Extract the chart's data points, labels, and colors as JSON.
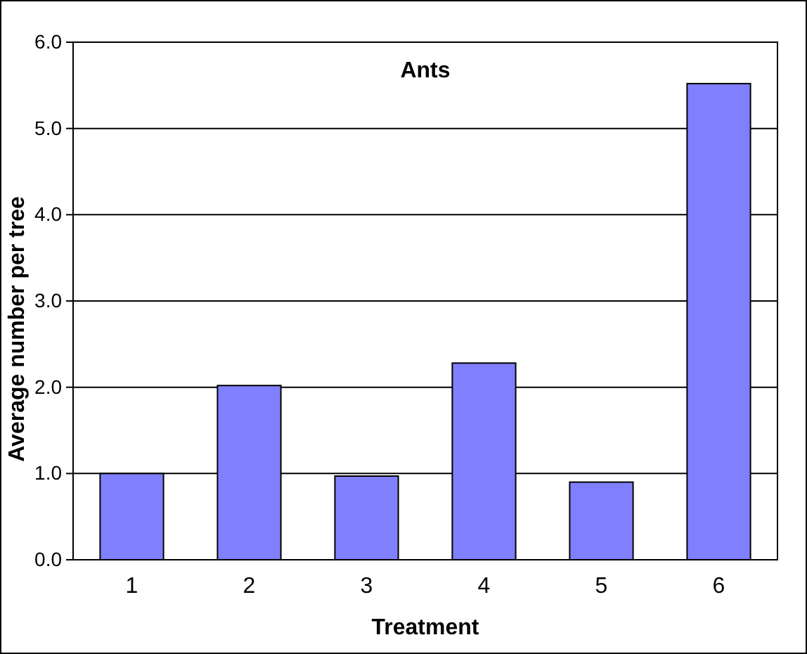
{
  "chart_data": {
    "type": "bar",
    "title": "Ants",
    "xlabel": "Treatment",
    "ylabel": "Average number per tree",
    "categories": [
      "1",
      "2",
      "3",
      "4",
      "5",
      "6"
    ],
    "values": [
      1.0,
      2.02,
      0.97,
      2.28,
      0.9,
      5.52
    ],
    "color": "#8080ff",
    "ylim": [
      0,
      6
    ],
    "yticks": [
      {
        "value": 0,
        "label": "0.0"
      },
      {
        "value": 1,
        "label": "1.0"
      },
      {
        "value": 2,
        "label": "2.0"
      },
      {
        "value": 3,
        "label": "3.0"
      },
      {
        "value": 4,
        "label": "4.0"
      },
      {
        "value": 5,
        "label": "5.0"
      },
      {
        "value": 6,
        "label": "6.0"
      }
    ],
    "grid": "y"
  }
}
